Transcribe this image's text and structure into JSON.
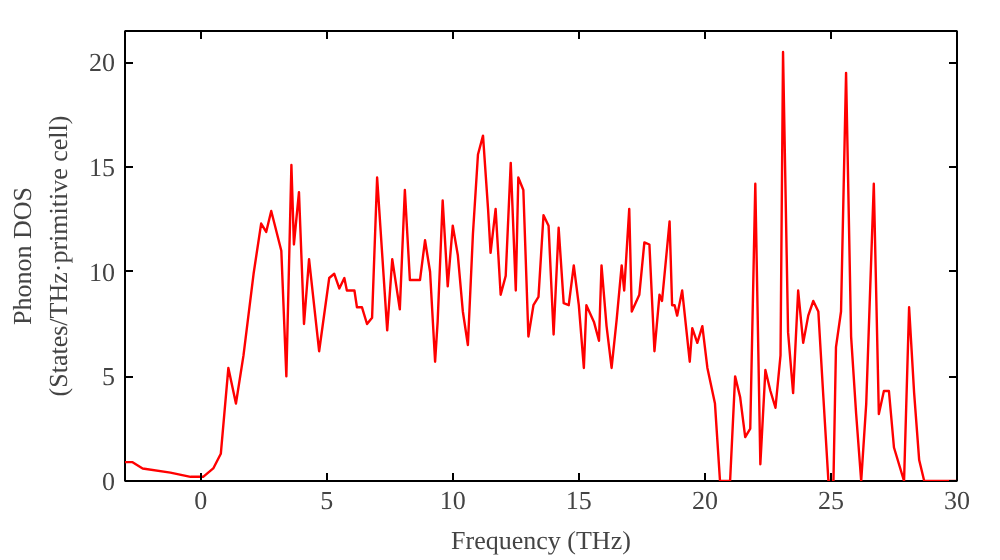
{
  "chart_data": {
    "type": "line",
    "xlabel": "Frequency (THz)",
    "ylabel": "Phonon DOS\n(States/THz·primitive cell)",
    "xlim": [
      -3,
      30
    ],
    "ylim": [
      0,
      21.5
    ],
    "xticks": [
      0,
      5,
      10,
      15,
      20,
      25,
      30
    ],
    "yticks": [
      0,
      5,
      10,
      15,
      20
    ],
    "grid": false,
    "series": [
      {
        "color": "#ff0000",
        "x": [
          -3.0,
          -2.7,
          -2.3,
          -1.2,
          -0.4,
          0.1,
          0.5,
          0.8,
          1.1,
          1.4,
          1.7,
          2.1,
          2.4,
          2.6,
          2.8,
          3.2,
          3.4,
          3.6,
          3.7,
          3.9,
          4.1,
          4.3,
          4.7,
          5.1,
          5.3,
          5.5,
          5.7,
          5.8,
          6.1,
          6.2,
          6.4,
          6.6,
          6.8,
          7.0,
          7.4,
          7.6,
          7.9,
          8.1,
          8.3,
          8.7,
          8.9,
          9.1,
          9.3,
          9.4,
          9.6,
          9.8,
          10.0,
          10.2,
          10.4,
          10.6,
          10.8,
          11.0,
          11.2,
          11.4,
          11.5,
          11.7,
          11.9,
          12.1,
          12.3,
          12.5,
          12.6,
          12.8,
          13.0,
          13.2,
          13.4,
          13.6,
          13.8,
          14.0,
          14.2,
          14.4,
          14.6,
          14.8,
          15.0,
          15.2,
          15.3,
          15.6,
          15.8,
          15.9,
          16.1,
          16.3,
          16.5,
          16.7,
          16.8,
          17.0,
          17.1,
          17.4,
          17.6,
          17.8,
          18.0,
          18.2,
          18.3,
          18.6,
          18.7,
          18.8,
          18.9,
          19.1,
          19.4,
          19.5,
          19.7,
          19.9,
          20.1,
          20.4,
          20.6,
          21.0,
          21.2,
          21.4,
          21.6,
          21.8,
          22.0,
          22.2,
          22.4,
          22.6,
          22.8,
          23.0,
          23.1,
          23.3,
          23.5,
          23.7,
          23.9,
          24.1,
          24.3,
          24.5,
          24.7,
          24.9,
          25.1,
          25.2,
          25.4,
          25.6,
          25.8,
          26.0,
          26.2,
          26.4,
          26.7,
          26.9,
          27.1,
          27.3,
          27.5,
          27.9,
          28.1,
          28.3,
          28.5,
          28.7,
          30.0
        ],
        "values": [
          0.9,
          0.9,
          0.6,
          0.4,
          0.2,
          0.2,
          0.6,
          1.3,
          5.4,
          3.7,
          6.0,
          9.9,
          12.3,
          11.9,
          12.9,
          11.0,
          5.0,
          15.1,
          11.3,
          13.8,
          7.5,
          10.6,
          6.2,
          9.7,
          9.9,
          9.2,
          9.7,
          9.1,
          9.1,
          8.3,
          8.3,
          7.5,
          7.8,
          14.5,
          7.2,
          10.6,
          8.2,
          13.9,
          9.6,
          9.6,
          11.5,
          10.0,
          5.7,
          7.6,
          13.4,
          9.3,
          12.2,
          10.8,
          8.1,
          6.5,
          11.8,
          15.6,
          16.5,
          13.0,
          10.9,
          13.0,
          8.9,
          9.8,
          15.2,
          9.1,
          14.5,
          13.9,
          6.9,
          8.4,
          8.8,
          12.7,
          12.2,
          7.0,
          12.1,
          8.5,
          8.4,
          10.3,
          8.4,
          5.4,
          8.4,
          7.6,
          6.7,
          10.3,
          7.4,
          5.4,
          7.7,
          10.3,
          9.1,
          13.0,
          8.1,
          8.9,
          11.4,
          11.3,
          6.2,
          8.9,
          8.6,
          12.4,
          8.4,
          8.4,
          7.9,
          9.1,
          5.7,
          7.3,
          6.6,
          7.4,
          5.4,
          3.7,
          0,
          0,
          5.0,
          4.0,
          2.1,
          2.5,
          14.2,
          0.8,
          5.3,
          4.3,
          3.5,
          6.0,
          20.5,
          7.1,
          4.2,
          9.1,
          6.6,
          7.9,
          8.6,
          8.1,
          4.0,
          0,
          0,
          6.4,
          8.1,
          19.5,
          6.9,
          3.2,
          0,
          3.7,
          14.2,
          3.2,
          4.3,
          4.3,
          1.6,
          0,
          8.3,
          4.2,
          1.0,
          0,
          0
        ]
      }
    ]
  }
}
